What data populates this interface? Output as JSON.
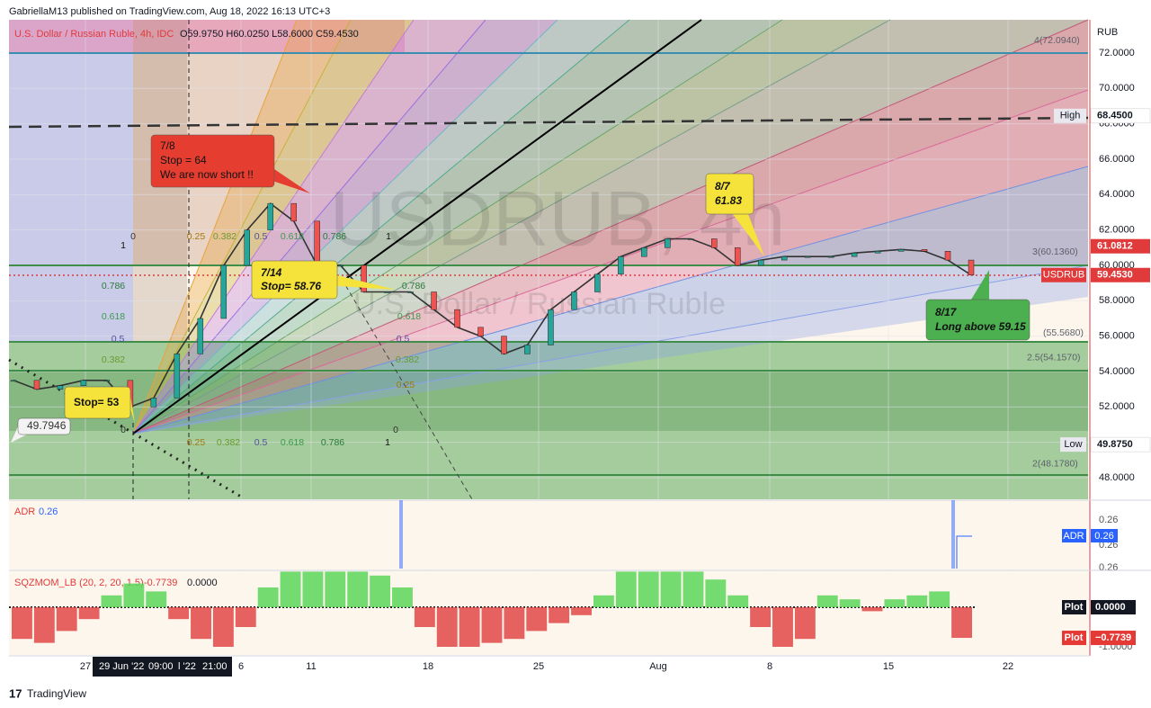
{
  "header": {
    "publisher": "GabriellaM13 published on TradingView.com, Aug 18, 2022 16:13 UTC+3",
    "symbol": "U.S. Dollar / Russian Ruble, 4h, IDC",
    "ohlc": "O59.9750 H60.0250 L58.6000 C59.4530",
    "watermark": "USDRUB, 4h",
    "watermark_sub": "U.S. Dollar / Russian Ruble"
  },
  "price_axis": {
    "currency": "RUB",
    "ylim": [
      46.78,
      73.88
    ],
    "yticks": [
      {
        "value": 72,
        "label": "72.0000"
      },
      {
        "value": 70,
        "label": "70.0000"
      },
      {
        "value": 68,
        "label": "68.0000"
      },
      {
        "value": 66,
        "label": "66.0000"
      },
      {
        "value": 64,
        "label": "64.0000"
      },
      {
        "value": 62,
        "label": "62.0000"
      },
      {
        "value": 60,
        "label": "60.0000"
      },
      {
        "value": 58,
        "label": "58.0000"
      },
      {
        "value": 56,
        "label": "56.0000"
      },
      {
        "value": 54,
        "label": "54.0000"
      },
      {
        "value": 52,
        "label": "52.0000"
      },
      {
        "value": 50,
        "label": "50.0000"
      },
      {
        "value": 48,
        "label": "48.0000"
      }
    ]
  },
  "price": {
    "closes": [
      53.5,
      53.0,
      53.2,
      53.5,
      53.5,
      52.0,
      52.5,
      55.0,
      57.0,
      60.0,
      62.0,
      63.5,
      62.5,
      60.0,
      60.0,
      58.5,
      58.5,
      58.5,
      57.5,
      56.5,
      56.0,
      55.0,
      55.5,
      57.5,
      58.5,
      59.5,
      60.5,
      61.0,
      61.5,
      61.5,
      61.0,
      60.0,
      60.3,
      60.5,
      60.5,
      60.5,
      60.7,
      60.8,
      60.9,
      60.8,
      60.3,
      59.453
    ]
  },
  "markers": [
    {
      "name": "High",
      "value": 68.45,
      "value_label": "68.4500"
    },
    {
      "name": "Low",
      "value": 49.875,
      "value_label": "49.8750"
    },
    {
      "name": "USDRUB",
      "value": 59.453,
      "value_label": "59.4530"
    },
    {
      "value": 61.0812,
      "value_label": "61.0812"
    }
  ],
  "fib_levels": [
    {
      "label": "4(72.0940)",
      "value": 72.094
    },
    {
      "label": "3(60.1360)",
      "value": 60.136
    },
    {
      "label": "(55.5680)",
      "value": 55.568
    },
    {
      "label": "2.5(54.1570)",
      "value": 54.157
    },
    {
      "label": "2(48.1780)",
      "value": 48.178
    }
  ],
  "fan_labels": [
    "0",
    "0.25",
    "0.382",
    "0.5",
    "0.618",
    "0.786",
    "1",
    "1",
    "0.786",
    "0.618",
    "0.5",
    "0.382",
    "0",
    "0.25",
    "0.382",
    "0.5",
    "0.618",
    "0.786",
    "1",
    "0.786",
    "0.618",
    "0.5",
    "0.382",
    "0.25",
    "0"
  ],
  "annotations": [
    {
      "lines": [
        "7/8",
        "Stop = 64",
        "We are now short !!"
      ]
    },
    {
      "lines": [
        "8/7",
        "61.83"
      ]
    },
    {
      "lines": [
        "7/14",
        "Stop= 58.76"
      ]
    },
    {
      "lines": [
        "8/17",
        "Long above 59.15"
      ]
    },
    {
      "lines": [
        "Stop= 53"
      ]
    },
    {
      "lines": [
        "49.7946"
      ]
    }
  ],
  "time_axis": {
    "labels": [
      "27",
      "6",
      "11",
      "18",
      "25",
      "Aug",
      "8",
      "15",
      "22"
    ],
    "crosshair": [
      "29 Jun '22",
      "09:00",
      "l '22",
      "21:00"
    ]
  },
  "adr": {
    "name": "ADR",
    "value": 0.26,
    "axis_labels": [
      "0.26",
      "0.26",
      "0.26"
    ],
    "badge": "ADR"
  },
  "sqzmom": {
    "name": "SQZMOM_LB (20, 2, 20, 1.5)",
    "value": -0.7739,
    "value_label": "−0.7739",
    "zero": 0,
    "zero_label": "0.0000",
    "badge": "Plot",
    "ylim": [
      -1.2045,
      0.8636
    ],
    "yticks": [
      {
        "value": -1,
        "label": "-1.0000"
      }
    ],
    "values": [
      -0.8,
      -0.9,
      -0.6,
      -0.3,
      0.3,
      0.6,
      0.4,
      -0.3,
      -0.8,
      -1.0,
      -0.5,
      0.5,
      0.9,
      0.9,
      0.9,
      0.9,
      0.8,
      0.5,
      -0.5,
      -1.0,
      -1.0,
      -0.9,
      -0.8,
      -0.6,
      -0.4,
      -0.2,
      0.3,
      0.9,
      0.9,
      0.9,
      0.9,
      0.7,
      0.3,
      -0.5,
      -1.0,
      -0.8,
      0.3,
      0.2,
      -0.1,
      0.2,
      0.3,
      0.4,
      -0.7739
    ]
  },
  "footer": "TradingView"
}
